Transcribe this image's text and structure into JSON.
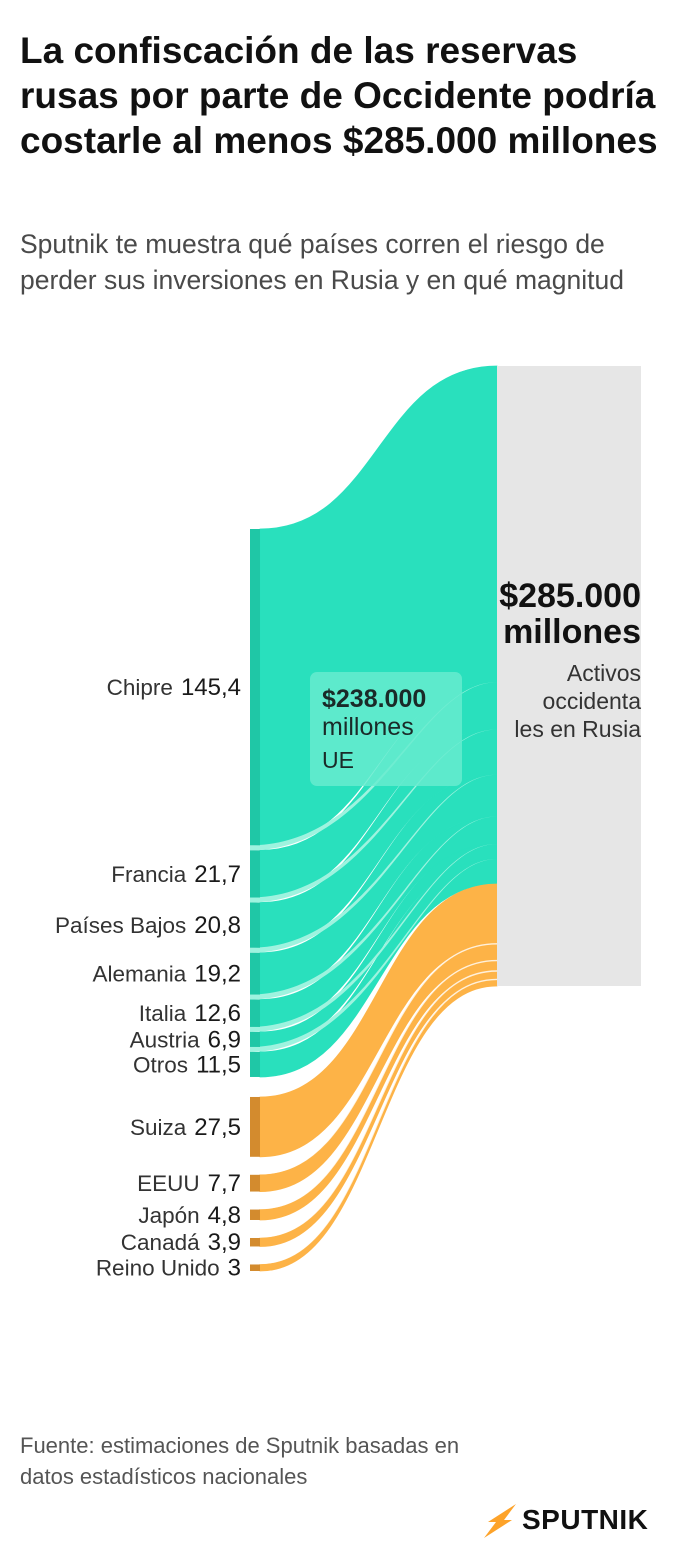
{
  "title": "La confiscación de las reservas rusas por parte de Occidente podría costarle al menos $285.000 millones",
  "subtitle": "Sputnik te muestra qué países corren el riesgo de perder sus inversiones en Rusia y en qué magnitud",
  "source": "Fuente: estimaciones de Sputnik basadas en datos estadísticos nacionales",
  "brand": "SPUTNIK",
  "colors": {
    "eu": "#29e0bd",
    "eu_dark": "#1fc7a6",
    "eu_light": "#9ef3df",
    "non_eu": "#fdb347",
    "non_eu_dark": "#d38b2e",
    "total_bar": "#e6e6e6",
    "eu_label_box": "#66ebcf"
  },
  "chart_data": {
    "type": "sankey",
    "unit": "miles de millones de dólares",
    "total": {
      "value_label": "$285.000 millones",
      "value": 285,
      "label": "Activos occidentales en Rusia",
      "label_lines": [
        "Activos",
        "occidenta",
        "les en Rusia"
      ]
    },
    "groups": [
      {
        "name": "UE",
        "value_label": "$238.000 millones",
        "value": 238,
        "label": "UE"
      }
    ],
    "sources": [
      {
        "name": "Chipre",
        "value": 145.4,
        "value_label": "145,4",
        "group": "UE"
      },
      {
        "name": "Francia",
        "value": 21.7,
        "value_label": "21,7",
        "group": "UE"
      },
      {
        "name": "Países Bajos",
        "value": 20.8,
        "value_label": "20,8",
        "group": "UE"
      },
      {
        "name": "Alemania",
        "value": 19.2,
        "value_label": "19,2",
        "group": "UE"
      },
      {
        "name": "Italia",
        "value": 12.6,
        "value_label": "12,6",
        "group": "UE"
      },
      {
        "name": "Austria",
        "value": 6.9,
        "value_label": "6,9",
        "group": "UE"
      },
      {
        "name": "Otros",
        "value": 11.5,
        "value_label": "11,5",
        "group": "UE"
      },
      {
        "name": "Suiza",
        "value": 27.5,
        "value_label": "27,5",
        "group": "no UE"
      },
      {
        "name": "EEUU",
        "value": 7.7,
        "value_label": "7,7",
        "group": "no UE"
      },
      {
        "name": "Japón",
        "value": 4.8,
        "value_label": "4,8",
        "group": "no UE"
      },
      {
        "name": "Canadá",
        "value": 3.9,
        "value_label": "3,9",
        "group": "no UE"
      },
      {
        "name": "Reino Unido",
        "value": 3,
        "value_label": "3",
        "group": "no UE"
      }
    ]
  }
}
